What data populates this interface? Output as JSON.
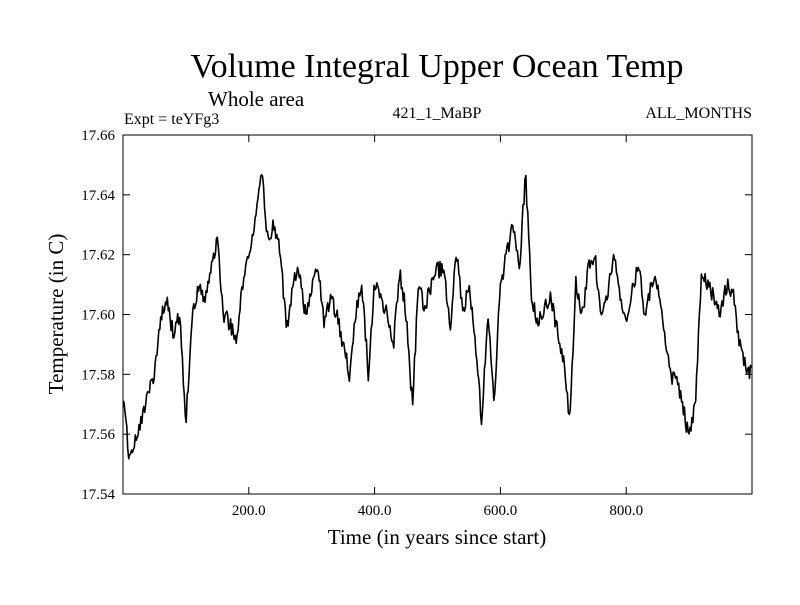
{
  "chart_data": {
    "type": "line",
    "title": "Volume Integral Upper Ocean Temp",
    "subtitle": "Whole area",
    "annotations": {
      "left": "Expt = teYFg3",
      "center": "421_1_MaBP",
      "right": "ALL_MONTHS"
    },
    "xlabel": "Time (in years since start)",
    "ylabel": "Temperature (in C)",
    "xlim": [
      0,
      1000
    ],
    "ylim": [
      17.54,
      17.66
    ],
    "xticks": [
      200,
      400,
      600,
      800
    ],
    "xtick_labels": [
      "200.0",
      "400.0",
      "600.0",
      "800.0"
    ],
    "yticks": [
      17.54,
      17.56,
      17.58,
      17.6,
      17.62,
      17.64,
      17.66
    ],
    "ytick_labels": [
      "17.54",
      "17.56",
      "17.58",
      "17.60",
      "17.62",
      "17.64",
      "17.66"
    ],
    "grid": false,
    "line_color": "#000000",
    "series": [
      {
        "name": "Volume Integral Upper Ocean Temp",
        "x": [
          0,
          10,
          20,
          30,
          40,
          50,
          60,
          70,
          80,
          90,
          100,
          110,
          120,
          130,
          140,
          150,
          160,
          170,
          180,
          190,
          200,
          210,
          220,
          230,
          240,
          250,
          260,
          270,
          280,
          290,
          300,
          310,
          320,
          330,
          340,
          350,
          360,
          370,
          380,
          390,
          400,
          410,
          420,
          430,
          440,
          450,
          460,
          470,
          480,
          490,
          500,
          510,
          520,
          530,
          540,
          550,
          560,
          570,
          580,
          590,
          600,
          610,
          620,
          630,
          640,
          650,
          660,
          670,
          680,
          690,
          700,
          710,
          720,
          730,
          740,
          750,
          760,
          770,
          780,
          790,
          800,
          810,
          820,
          830,
          840,
          850,
          860,
          870,
          880,
          890,
          900,
          910,
          920,
          930,
          940,
          950,
          960,
          970,
          980,
          990,
          1000
        ],
        "values": [
          17.572,
          17.552,
          17.558,
          17.565,
          17.575,
          17.58,
          17.598,
          17.605,
          17.593,
          17.6,
          17.565,
          17.598,
          17.61,
          17.605,
          17.615,
          17.625,
          17.6,
          17.597,
          17.59,
          17.61,
          17.62,
          17.63,
          17.65,
          17.625,
          17.63,
          17.62,
          17.595,
          17.61,
          17.615,
          17.6,
          17.61,
          17.615,
          17.597,
          17.605,
          17.6,
          17.59,
          17.58,
          17.6,
          17.61,
          17.58,
          17.61,
          17.605,
          17.6,
          17.59,
          17.615,
          17.6,
          17.57,
          17.61,
          17.602,
          17.61,
          17.615,
          17.615,
          17.595,
          17.622,
          17.6,
          17.61,
          17.59,
          17.565,
          17.6,
          17.57,
          17.61,
          17.62,
          17.63,
          17.615,
          17.647,
          17.605,
          17.597,
          17.602,
          17.607,
          17.595,
          17.585,
          17.565,
          17.61,
          17.6,
          17.615,
          17.62,
          17.6,
          17.605,
          17.62,
          17.605,
          17.597,
          17.61,
          17.615,
          17.6,
          17.61,
          17.61,
          17.595,
          17.58,
          17.578,
          17.57,
          17.558,
          17.57,
          17.615,
          17.61,
          17.605,
          17.6,
          17.61,
          17.608,
          17.59,
          17.582,
          17.58
        ]
      }
    ]
  }
}
